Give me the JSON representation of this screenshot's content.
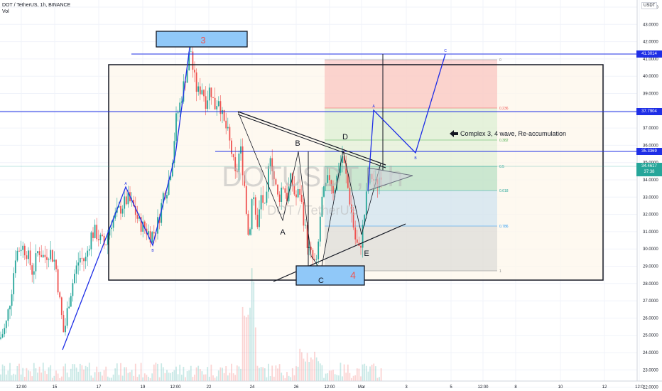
{
  "header": {
    "symbol": "DOT / TetherUS, 1h, BINANCE",
    "volume": "Vol"
  },
  "axis": {
    "currency": "USDT",
    "price_ticks": [
      "44.0000",
      "43.0000",
      "42.0000",
      "41.0000",
      "40.0000",
      "39.0000",
      "38.0000",
      "37.0000",
      "36.0000",
      "35.0000",
      "34.0000",
      "33.0000",
      "32.0000",
      "31.0000",
      "30.0000",
      "29.0000",
      "28.0000",
      "27.0000",
      "26.0000",
      "25.0000",
      "24.0000",
      "23.0000",
      "22.0000"
    ],
    "time_ticks": [
      "12:00",
      "15",
      "17",
      "19",
      "12:00",
      "22",
      "24",
      "26",
      "12:00",
      "Mar",
      "3",
      "5",
      "12:00",
      "8",
      "10",
      "12",
      "12:0"
    ]
  },
  "price_tags": {
    "level_a": "41.3014",
    "level_b": "37.7904",
    "level_c": "35.3369",
    "current": "34.4617",
    "countdown": "37:38"
  },
  "watermark": {
    "symbol": "DOTUSDT, 1h",
    "name": "DOT / TetherUS"
  },
  "fib_levels": [
    "0",
    "0.236",
    "0.382",
    "0.5",
    "0.618",
    "0.786",
    "1"
  ],
  "annotations": {
    "wave3": "3",
    "wave4": "4",
    "A": "A",
    "B": "B",
    "C": "C",
    "D": "D",
    "E": "E",
    "small_a": "A",
    "small_b": "B",
    "small_c": "C",
    "note": "Complex 3, 4 wave, Re-accumulation"
  },
  "colors": {
    "up": "#26a69a",
    "down": "#ef5350",
    "line": "#1e2ee6",
    "box_label": "#90c8f8"
  },
  "chart_data": {
    "type": "candlestick",
    "title": "DOT / TetherUS, 1h, BINANCE",
    "ylim": [
      21.5,
      44.5
    ],
    "horizontal_levels": [
      41.3014,
      37.7904,
      35.3369
    ],
    "last_price": 34.4617,
    "path": [
      [
        0,
        24.8
      ],
      [
        8,
        25.5
      ],
      [
        16,
        27.5
      ],
      [
        22,
        29.7
      ],
      [
        30,
        30.2
      ],
      [
        38,
        29.8
      ],
      [
        46,
        28.6
      ],
      [
        54,
        30.0
      ],
      [
        62,
        29.5
      ],
      [
        70,
        29.9
      ],
      [
        78,
        29.2
      ],
      [
        84,
        27.0
      ],
      [
        90,
        25.0
      ],
      [
        96,
        26.8
      ],
      [
        104,
        28.4
      ],
      [
        112,
        29.5
      ],
      [
        120,
        29.3
      ],
      [
        128,
        30.8
      ],
      [
        134,
        31.0
      ],
      [
        140,
        30.6
      ],
      [
        148,
        30.2
      ],
      [
        156,
        31.5
      ],
      [
        164,
        32.0
      ],
      [
        172,
        32.5
      ],
      [
        180,
        32.9
      ],
      [
        188,
        32.4
      ],
      [
        196,
        31.5
      ],
      [
        204,
        31.2
      ],
      [
        212,
        30.8
      ],
      [
        218,
        31.0
      ],
      [
        224,
        31.8
      ],
      [
        230,
        33.2
      ],
      [
        236,
        33.6
      ],
      [
        242,
        35.0
      ],
      [
        248,
        37.5
      ],
      [
        254,
        38.5
      ],
      [
        260,
        39.8
      ],
      [
        264,
        40.5
      ],
      [
        268,
        41.8
      ],
      [
        272,
        40.2
      ],
      [
        278,
        39.0
      ],
      [
        284,
        39.4
      ],
      [
        290,
        38.5
      ],
      [
        296,
        39.4
      ],
      [
        302,
        38.2
      ],
      [
        308,
        38.8
      ],
      [
        314,
        37.4
      ],
      [
        320,
        36.8
      ],
      [
        326,
        35.6
      ],
      [
        332,
        34.0
      ],
      [
        338,
        36.0
      ],
      [
        344,
        33.8
      ],
      [
        350,
        30.5
      ],
      [
        356,
        33.6
      ],
      [
        362,
        31.0
      ],
      [
        368,
        33.2
      ],
      [
        374,
        32.0
      ],
      [
        380,
        35.8
      ],
      [
        386,
        34.0
      ],
      [
        392,
        32.8
      ],
      [
        398,
        33.8
      ],
      [
        404,
        33.0
      ],
      [
        410,
        34.1
      ],
      [
        416,
        32.9
      ],
      [
        422,
        33.4
      ],
      [
        428,
        31.6
      ],
      [
        434,
        30.0
      ],
      [
        440,
        29.4
      ],
      [
        446,
        29.0
      ],
      [
        452,
        32.6
      ],
      [
        458,
        33.5
      ],
      [
        464,
        34.2
      ],
      [
        470,
        33.3
      ],
      [
        476,
        34.5
      ],
      [
        482,
        35.4
      ],
      [
        488,
        34.0
      ],
      [
        494,
        32.4
      ],
      [
        500,
        30.6
      ],
      [
        506,
        29.8
      ],
      [
        512,
        31.6
      ],
      [
        518,
        33.8
      ],
      [
        524,
        34.2
      ],
      [
        530,
        33.6
      ],
      [
        536,
        34.46
      ]
    ]
  }
}
